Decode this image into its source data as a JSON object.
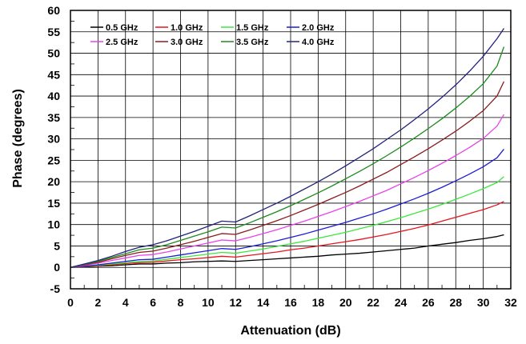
{
  "chart_data": {
    "type": "line",
    "title": "",
    "xlabel": "Attenuation (dB)",
    "ylabel": "Phase (degrees)",
    "xlim": [
      0,
      32
    ],
    "ylim": [
      -5,
      60
    ],
    "x_ticks": [
      0,
      2,
      4,
      6,
      8,
      10,
      12,
      14,
      16,
      18,
      20,
      22,
      24,
      26,
      28,
      30,
      32
    ],
    "y_ticks": [
      -5,
      0,
      5,
      10,
      15,
      20,
      25,
      30,
      35,
      40,
      45,
      50,
      55,
      60
    ],
    "grid": true,
    "legend_position": "top-left",
    "x": [
      0,
      1,
      2,
      3,
      4,
      5,
      6,
      7,
      8,
      9,
      10,
      11,
      12,
      13,
      14,
      15,
      16,
      17,
      18,
      19,
      20,
      21,
      22,
      23,
      24,
      25,
      26,
      27,
      28,
      29,
      30,
      31,
      31.5
    ],
    "series": [
      {
        "name": "0.5 GHz",
        "color": "#000000",
        "values": [
          0,
          0.1,
          0.3,
          0.4,
          0.6,
          0.8,
          0.8,
          1.0,
          1.1,
          1.3,
          1.4,
          1.5,
          1.4,
          1.6,
          1.8,
          2.0,
          2.2,
          2.4,
          2.6,
          2.9,
          3.1,
          3.3,
          3.6,
          3.9,
          4.2,
          4.5,
          5.0,
          5.4,
          5.8,
          6.3,
          6.7,
          7.2,
          7.6
        ]
      },
      {
        "name": "1.0 GHz",
        "color": "#e8141c",
        "values": [
          0,
          0.2,
          0.4,
          0.6,
          0.9,
          1.1,
          1.2,
          1.5,
          1.8,
          2.0,
          2.3,
          2.6,
          2.4,
          2.8,
          3.2,
          3.6,
          4.1,
          4.5,
          5.0,
          5.5,
          6.0,
          6.5,
          7.1,
          7.7,
          8.4,
          9.1,
          9.9,
          10.8,
          11.7,
          12.6,
          13.5,
          14.6,
          15.4
        ]
      },
      {
        "name": "1.5 GHz",
        "color": "#3ce83c",
        "values": [
          0,
          0.3,
          0.5,
          0.8,
          1.1,
          1.4,
          1.5,
          1.9,
          2.3,
          2.7,
          3.1,
          3.5,
          3.3,
          3.8,
          4.3,
          4.9,
          5.5,
          6.1,
          6.8,
          7.5,
          8.2,
          9.0,
          9.8,
          10.7,
          11.6,
          12.6,
          13.6,
          14.7,
          15.9,
          17.1,
          18.4,
          19.8,
          21.2
        ]
      },
      {
        "name": "2.0 GHz",
        "color": "#1c1cd8",
        "values": [
          0,
          0.3,
          0.6,
          1.0,
          1.4,
          1.8,
          1.9,
          2.4,
          2.9,
          3.4,
          3.9,
          4.4,
          4.2,
          4.8,
          5.5,
          6.2,
          7.0,
          7.8,
          8.7,
          9.6,
          10.5,
          11.5,
          12.5,
          13.6,
          14.8,
          16.0,
          17.3,
          18.7,
          20.2,
          21.8,
          23.5,
          25.6,
          27.6
        ]
      },
      {
        "name": "2.5 GHz",
        "color": "#e842e8",
        "values": [
          0,
          0.5,
          1.0,
          1.6,
          2.2,
          2.8,
          3.0,
          3.6,
          4.3,
          5.0,
          5.7,
          6.4,
          6.2,
          7.0,
          7.9,
          8.8,
          9.8,
          10.8,
          11.9,
          13.0,
          14.2,
          15.4,
          16.7,
          18.0,
          19.5,
          21.0,
          22.6,
          24.3,
          26.1,
          28.0,
          30.1,
          33.0,
          35.7
        ]
      },
      {
        "name": "3.0 GHz",
        "color": "#8b1c1c",
        "values": [
          0,
          0.6,
          1.2,
          2.0,
          2.8,
          3.5,
          3.8,
          4.5,
          5.3,
          6.1,
          7.0,
          7.9,
          7.7,
          8.7,
          9.8,
          10.9,
          12.1,
          13.4,
          14.7,
          16.1,
          17.5,
          19.0,
          20.6,
          22.2,
          24.0,
          25.8,
          27.7,
          29.7,
          31.8,
          34.1,
          36.6,
          40.0,
          43.4
        ]
      },
      {
        "name": "3.5 GHz",
        "color": "#1c8b1c",
        "values": [
          0,
          0.7,
          1.4,
          2.3,
          3.2,
          4.1,
          4.5,
          5.3,
          6.3,
          7.3,
          8.3,
          9.4,
          9.2,
          10.4,
          11.7,
          13.0,
          14.4,
          15.9,
          17.4,
          19.0,
          20.7,
          22.4,
          24.2,
          26.1,
          28.1,
          30.2,
          32.4,
          34.7,
          37.2,
          39.9,
          42.9,
          47.0,
          51.5
        ]
      },
      {
        "name": "4.0 GHz",
        "color": "#22227a",
        "values": [
          0,
          0.8,
          1.6,
          2.6,
          3.7,
          4.7,
          5.3,
          6.2,
          7.3,
          8.4,
          9.6,
          10.8,
          10.6,
          12.0,
          13.5,
          15.0,
          16.6,
          18.3,
          20.0,
          21.8,
          23.7,
          25.7,
          27.7,
          29.9,
          32.1,
          34.5,
          37.0,
          39.7,
          42.6,
          45.8,
          49.3,
          53.4,
          55.8
        ]
      }
    ]
  }
}
